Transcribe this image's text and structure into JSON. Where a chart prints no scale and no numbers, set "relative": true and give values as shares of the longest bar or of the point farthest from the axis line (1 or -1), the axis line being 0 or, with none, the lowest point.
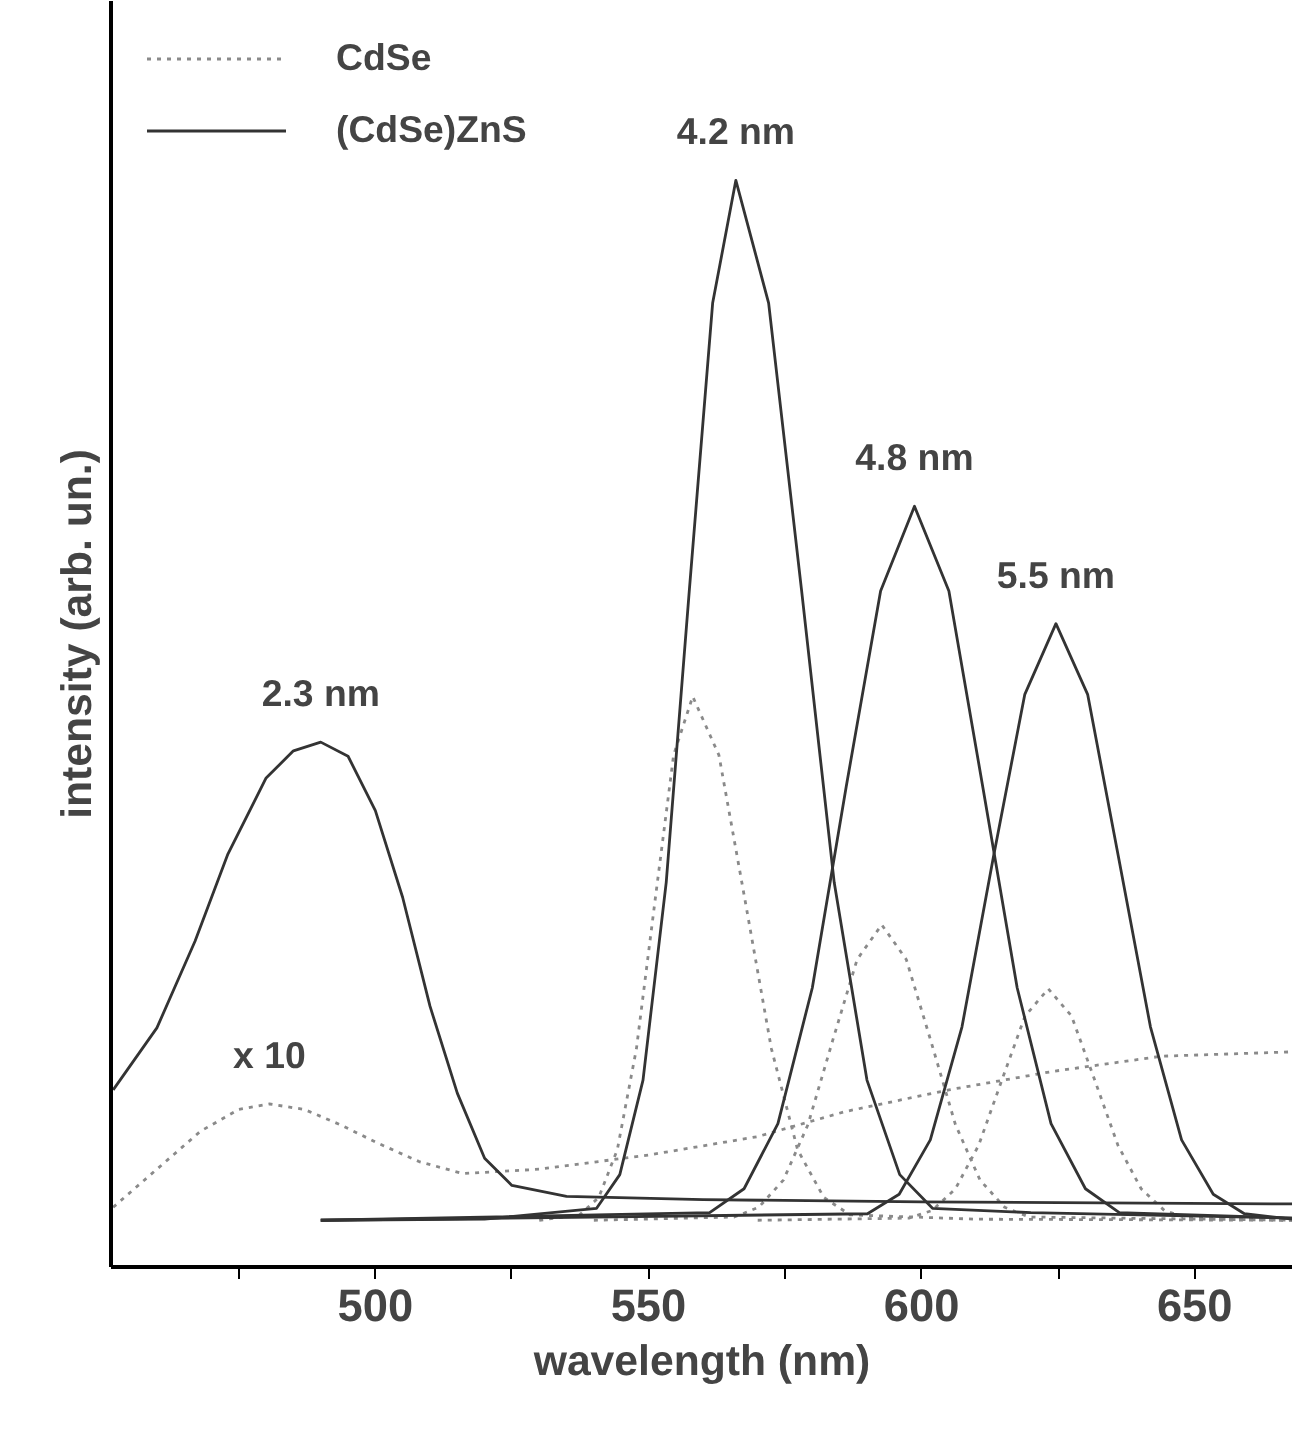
{
  "chart_data": {
    "type": "line",
    "relative": true,
    "xlabel": "wavelength (nm)",
    "ylabel": "intensity (arb. un.)",
    "xlim": [
      451.6,
      668
    ],
    "xticks": [
      {
        "value": 475,
        "label": null
      },
      500,
      {
        "value": 525,
        "label": null
      },
      550,
      {
        "value": 575,
        "label": null
      },
      600,
      {
        "value": 625,
        "label": null
      },
      650
    ],
    "tick_labels": "x",
    "grid": false,
    "legend": "top left",
    "series": [
      {
        "name": "CdSe",
        "color": "#8a8a8a",
        "line_style": "dotted",
        "x": [
          452,
          460,
          468,
          475,
          480.6,
          487,
          494,
          500,
          508,
          516,
          530,
          550,
          570,
          586,
          605,
          624,
          644,
          668
        ],
        "values": [
          0.055,
          0.09,
          0.125,
          0.145,
          0.15,
          0.145,
          0.13,
          0.115,
          0.097,
          0.086,
          0.09,
          0.103,
          0.12,
          0.143,
          0.163,
          0.18,
          0.194,
          0.198
        ]
      },
      {
        "color": "#8a8a8a",
        "line_style": "dotted",
        "x": [
          530,
          537.4,
          540.9,
          544.3,
          547.8,
          551.2,
          554.6,
          558.1,
          562.9,
          567.7,
          572.5,
          577.3,
          582.1,
          586.9,
          610,
          668
        ],
        "values": [
          0.043,
          0.048,
          0.064,
          0.108,
          0.201,
          0.337,
          0.471,
          0.525,
          0.471,
          0.337,
          0.201,
          0.108,
          0.064,
          0.048,
          0.044,
          0.043
        ]
      },
      {
        "color": "#8a8a8a",
        "line_style": "dotted",
        "x": [
          540,
          565.7,
          570.2,
          574.7,
          579.2,
          583.7,
          588.2,
          592.7,
          597.2,
          601.7,
          606.2,
          610.7,
          615.2,
          619.7,
          668
        ],
        "values": [
          0.043,
          0.046,
          0.055,
          0.08,
          0.131,
          0.208,
          0.283,
          0.315,
          0.283,
          0.208,
          0.131,
          0.08,
          0.055,
          0.046,
          0.043
        ]
      },
      {
        "color": "#8a8a8a",
        "line_style": "dotted",
        "x": [
          570,
          597.7,
          601.95,
          606.2,
          610.45,
          614.7,
          618.95,
          623.2,
          627.45,
          631.7,
          635.95,
          640.2,
          644.45,
          648.7,
          668
        ],
        "values": [
          0.043,
          0.045,
          0.052,
          0.072,
          0.112,
          0.172,
          0.231,
          0.256,
          0.231,
          0.172,
          0.112,
          0.072,
          0.052,
          0.045,
          0.043
        ]
      },
      {
        "name": "(CdSe)ZnS",
        "color": "#333333",
        "line_style": "solid",
        "x": [
          452,
          460,
          467,
          473,
          480,
          485,
          490,
          495,
          500,
          505,
          510,
          515,
          520,
          525,
          535,
          560,
          600,
          668
        ],
        "values": [
          0.163,
          0.22,
          0.3,
          0.38,
          0.45,
          0.475,
          0.483,
          0.47,
          0.42,
          0.34,
          0.24,
          0.16,
          0.1,
          0.075,
          0.065,
          0.062,
          0.06,
          0.058
        ]
      },
      {
        "color": "#333333",
        "line_style": "solid",
        "x": [
          490,
          520,
          540.5,
          544.75,
          549,
          553.25,
          557.5,
          561.75,
          566,
          572,
          578,
          584,
          590,
          596,
          602,
          620,
          668
        ],
        "values": [
          0.043,
          0.044,
          0.054,
          0.085,
          0.172,
          0.354,
          0.624,
          0.887,
          1.0,
          0.887,
          0.624,
          0.354,
          0.172,
          0.085,
          0.054,
          0.05,
          0.045
        ]
      },
      {
        "color": "#333333",
        "line_style": "solid",
        "x": [
          490,
          561.2,
          567.5,
          573.7,
          580,
          586.2,
          592.5,
          598.7,
          605,
          611.2,
          617.5,
          623.7,
          630,
          636.2,
          668
        ],
        "values": [
          0.043,
          0.05,
          0.072,
          0.132,
          0.257,
          0.442,
          0.622,
          0.7,
          0.622,
          0.442,
          0.257,
          0.132,
          0.072,
          0.05,
          0.045
        ]
      },
      {
        "color": "#333333",
        "line_style": "solid",
        "x": [
          490,
          590.1,
          595.9,
          601.6,
          607.4,
          613.1,
          618.9,
          624.6,
          630.4,
          636.1,
          641.9,
          647.6,
          653.4,
          659.1,
          668
        ],
        "values": [
          0.043,
          0.049,
          0.067,
          0.117,
          0.221,
          0.376,
          0.527,
          0.592,
          0.527,
          0.376,
          0.221,
          0.117,
          0.067,
          0.049,
          0.044
        ]
      }
    ],
    "annotations": [
      {
        "text": "2.3 nm",
        "x": 490,
        "y": 0.483
      },
      {
        "text": "4.2 nm",
        "x": 566,
        "y": 1.0
      },
      {
        "text": "4.8 nm",
        "x": 598.7,
        "y": 0.7
      },
      {
        "text": "5.5 nm",
        "x": 624.6,
        "y": 0.592
      },
      {
        "text": "x 10",
        "x": 480.6,
        "y": 0.15
      }
    ]
  }
}
